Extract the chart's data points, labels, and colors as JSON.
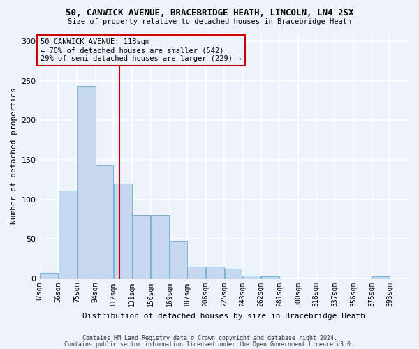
{
  "title1": "50, CANWICK AVENUE, BRACEBRIDGE HEATH, LINCOLN, LN4 2SX",
  "title2": "Size of property relative to detached houses in Bracebridge Heath",
  "xlabel": "Distribution of detached houses by size in Bracebridge Heath",
  "ylabel": "Number of detached properties",
  "footer1": "Contains HM Land Registry data © Crown copyright and database right 2024.",
  "footer2": "Contains public sector information licensed under the Open Government Licence v3.0.",
  "annotation_line1": "50 CANWICK AVENUE: 118sqm",
  "annotation_line2": "← 70% of detached houses are smaller (542)",
  "annotation_line3": "29% of semi-detached houses are larger (229) →",
  "bar_color": "#c5d8f0",
  "bar_edge_color": "#6aaad4",
  "ref_line_color": "#cc0000",
  "ref_line_x": 118,
  "bin_edges": [
    37,
    56,
    75,
    94,
    112,
    131,
    150,
    169,
    187,
    206,
    225,
    243,
    262,
    281,
    300,
    318,
    337,
    356,
    375,
    393,
    412
  ],
  "values": [
    7,
    111,
    243,
    143,
    120,
    80,
    80,
    48,
    15,
    15,
    12,
    4,
    3,
    0,
    0,
    0,
    0,
    0,
    3,
    0
  ],
  "ylim": [
    0,
    310
  ],
  "yticks": [
    0,
    50,
    100,
    150,
    200,
    250,
    300
  ],
  "bg_color": "#edf2fb",
  "grid_color": "#ffffff",
  "tick_label_fontsize": 7,
  "ylabel_fontsize": 8,
  "xlabel_fontsize": 8,
  "title1_fontsize": 9,
  "title2_fontsize": 7.5,
  "footer_fontsize": 6,
  "annot_fontsize": 7.5
}
